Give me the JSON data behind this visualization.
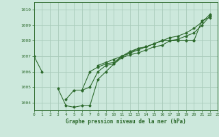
{
  "title": "Graphe pression niveau de la mer (hPa)",
  "bg_color": "#cce8dc",
  "grid_color": "#aaccbb",
  "line_color": "#2d6a2d",
  "xlim": [
    0,
    23
  ],
  "ylim": [
    1003.5,
    1010.5
  ],
  "yticks": [
    1004,
    1005,
    1006,
    1007,
    1008,
    1009,
    1010
  ],
  "xticks": [
    0,
    1,
    2,
    3,
    4,
    5,
    6,
    7,
    8,
    9,
    10,
    11,
    12,
    13,
    14,
    15,
    16,
    17,
    18,
    19,
    20,
    21,
    22,
    23
  ],
  "series": [
    [
      1007.0,
      1006.0,
      null,
      null,
      1004.2,
      1004.8,
      1004.8,
      1005.0,
      1006.0,
      1006.4,
      1006.5,
      1007.0,
      1007.2,
      1007.5,
      1007.6,
      1007.8,
      1008.0,
      1008.0,
      1008.0,
      1008.0,
      1008.0,
      1009.3,
      1009.5,
      null
    ],
    [
      null,
      null,
      null,
      1004.9,
      1003.8,
      1003.7,
      1003.8,
      1003.8,
      1005.5,
      1006.0,
      1006.5,
      1006.9,
      1007.1,
      1007.2,
      1007.4,
      1007.6,
      1007.7,
      1008.0,
      1008.0,
      1008.0,
      1008.0,
      null,
      1009.6,
      null
    ],
    [
      null,
      null,
      null,
      null,
      null,
      null,
      1004.8,
      1006.0,
      1006.3,
      1006.5,
      1006.6,
      1007.0,
      1007.2,
      1007.4,
      1007.6,
      1007.8,
      1008.0,
      1008.0,
      1008.1,
      1008.3,
      1008.5,
      1009.0,
      1009.6,
      null
    ],
    [
      null,
      null,
      null,
      null,
      null,
      null,
      null,
      null,
      1006.4,
      1006.6,
      1006.8,
      1007.0,
      1007.3,
      1007.5,
      1007.6,
      1007.8,
      1008.0,
      1008.2,
      1008.3,
      1008.5,
      1008.8,
      1009.2,
      1009.7,
      null
    ]
  ]
}
